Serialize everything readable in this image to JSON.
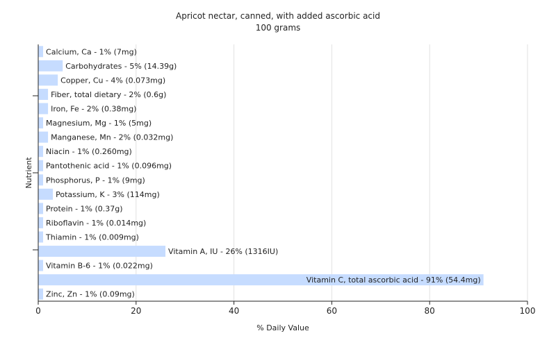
{
  "chart_data": {
    "type": "bar",
    "orientation": "horizontal",
    "title": "Apricot nectar, canned, with added ascorbic acid",
    "subtitle": "100 grams",
    "xlabel": "% Daily Value",
    "ylabel": "Nutrient",
    "xlim": [
      0,
      100
    ],
    "xticks": [
      0,
      20,
      40,
      60,
      80,
      100
    ],
    "grid": "vertical",
    "bar_color": "#c6dcff",
    "categories": [
      "Calcium, Ca",
      "Carbohydrates",
      "Copper, Cu",
      "Fiber, total dietary",
      "Iron, Fe",
      "Magnesium, Mg",
      "Manganese, Mn",
      "Niacin",
      "Pantothenic acid",
      "Phosphorus, P",
      "Potassium, K",
      "Protein",
      "Riboflavin",
      "Thiamin",
      "Vitamin A, IU",
      "Vitamin B-6",
      "Vitamin C, total ascorbic acid",
      "Zinc, Zn"
    ],
    "values": [
      1,
      5,
      4,
      2,
      2,
      1,
      2,
      1,
      1,
      1,
      3,
      1,
      1,
      1,
      26,
      1,
      91,
      1
    ],
    "labels": [
      "Calcium, Ca - 1% (7mg)",
      "Carbohydrates - 5% (14.39g)",
      "Copper, Cu - 4% (0.073mg)",
      "Fiber, total dietary - 2% (0.6g)",
      "Iron, Fe - 2% (0.38mg)",
      "Magnesium, Mg - 1% (5mg)",
      "Manganese, Mn - 2% (0.032mg)",
      "Niacin - 1% (0.260mg)",
      "Pantothenic acid - 1% (0.096mg)",
      "Phosphorus, P - 1% (9mg)",
      "Potassium, K - 3% (114mg)",
      "Protein - 1% (0.37g)",
      "Riboflavin - 1% (0.014mg)",
      "Thiamin - 1% (0.009mg)",
      "Vitamin A, IU - 26% (1316IU)",
      "Vitamin B-6 - 1% (0.022mg)",
      "Vitamin C, total ascorbic acid - 91% (54.4mg)",
      "Zinc, Zn - 1% (0.09mg)"
    ]
  }
}
